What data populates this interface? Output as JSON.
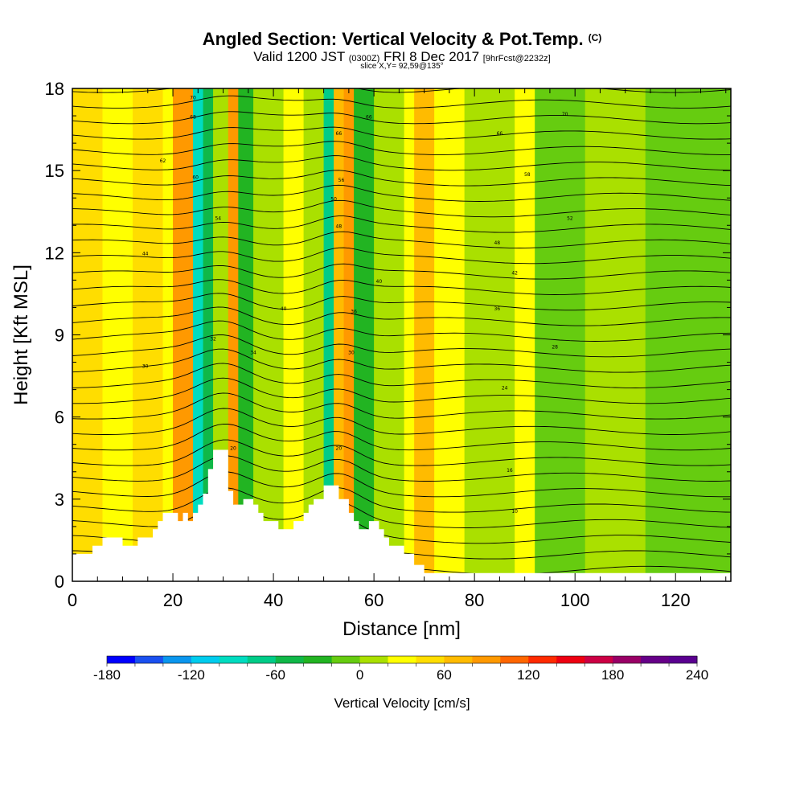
{
  "header": {
    "title": "Angled Section: Vertical Velocity & Pot.Temp.",
    "title_suffix": "(C)",
    "line2_a": "Valid 1200 JST",
    "line2_b": "(0300Z)",
    "line2_c": "FRI 8 Dec 2017",
    "line2_d": "[9hrFcst@2232z]",
    "line3": "slice X,Y= 92,59@135°"
  },
  "chart_data": {
    "type": "heatmap",
    "title": "Angled Section: Vertical Velocity & Pot.Temp. (C)",
    "xlabel": "Distance [nm]",
    "ylabel": "Height [Kft MSL]",
    "xlim": [
      0,
      131
    ],
    "ylim": [
      0,
      18
    ],
    "x_ticks": [
      0,
      20,
      40,
      60,
      80,
      100,
      120
    ],
    "y_ticks": [
      0,
      3,
      6,
      9,
      12,
      15,
      18
    ],
    "colorbar": {
      "title": "Vertical Velocity [cm/s]",
      "min": -180,
      "max": 240,
      "step": 20,
      "tick_labels": [
        -180,
        -120,
        -60,
        0,
        60,
        120,
        180,
        240
      ],
      "colors": [
        "#0000ff",
        "#1a50f0",
        "#0a96ee",
        "#00ccee",
        "#00dcc0",
        "#00cc88",
        "#10b848",
        "#22b422",
        "#66cc10",
        "#aae000",
        "#ffff00",
        "#ffdd00",
        "#ffbb00",
        "#ff9900",
        "#ff6600",
        "#ff2a00",
        "#ee0011",
        "#cc0044",
        "#990066",
        "#660088",
        "#5a0090"
      ]
    },
    "vertical_velocity_bands": [
      {
        "x": 0,
        "w": 6,
        "v": 40
      },
      {
        "x": 6,
        "w": 6,
        "v": 20
      },
      {
        "x": 12,
        "w": 6,
        "v": 40
      },
      {
        "x": 18,
        "w": 2,
        "v": 20
      },
      {
        "x": 20,
        "w": 4,
        "v": 90
      },
      {
        "x": 24,
        "w": 2,
        "v": -100
      },
      {
        "x": 26,
        "w": 2,
        "v": -60
      },
      {
        "x": 28,
        "w": 3,
        "v": 10
      },
      {
        "x": 31,
        "w": 2,
        "v": 80
      },
      {
        "x": 33,
        "w": 3,
        "v": -40
      },
      {
        "x": 36,
        "w": 6,
        "v": 0
      },
      {
        "x": 42,
        "w": 4,
        "v": 20
      },
      {
        "x": 46,
        "w": 4,
        "v": 0
      },
      {
        "x": 50,
        "w": 2,
        "v": -70
      },
      {
        "x": 52,
        "w": 2,
        "v": 60
      },
      {
        "x": 54,
        "w": 2,
        "v": 90
      },
      {
        "x": 56,
        "w": 4,
        "v": -40
      },
      {
        "x": 60,
        "w": 6,
        "v": 0
      },
      {
        "x": 66,
        "w": 2,
        "v": 20
      },
      {
        "x": 68,
        "w": 4,
        "v": 70
      },
      {
        "x": 72,
        "w": 6,
        "v": 20
      },
      {
        "x": 78,
        "w": 10,
        "v": 0
      },
      {
        "x": 88,
        "w": 4,
        "v": 30
      },
      {
        "x": 92,
        "w": 10,
        "v": -10
      },
      {
        "x": 102,
        "w": 12,
        "v": 0
      },
      {
        "x": 114,
        "w": 17,
        "v": -10
      }
    ],
    "terrain": [
      [
        0,
        1.0
      ],
      [
        4,
        1.0
      ],
      [
        4,
        1.3
      ],
      [
        6,
        1.3
      ],
      [
        6,
        1.6
      ],
      [
        10,
        1.6
      ],
      [
        10,
        1.3
      ],
      [
        13,
        1.3
      ],
      [
        13,
        1.6
      ],
      [
        16,
        1.6
      ],
      [
        16,
        1.9
      ],
      [
        17,
        1.9
      ],
      [
        17,
        2.2
      ],
      [
        18,
        2.2
      ],
      [
        18,
        2.5
      ],
      [
        21,
        2.5
      ],
      [
        21,
        2.2
      ],
      [
        22,
        2.2
      ],
      [
        22,
        2.5
      ],
      [
        23,
        2.5
      ],
      [
        23,
        2.2
      ],
      [
        24,
        2.2
      ],
      [
        24,
        2.5
      ],
      [
        25,
        2.5
      ],
      [
        25,
        2.8
      ],
      [
        26,
        2.8
      ],
      [
        26,
        3.2
      ],
      [
        27,
        3.2
      ],
      [
        27,
        4.1
      ],
      [
        28,
        4.1
      ],
      [
        28,
        4.8
      ],
      [
        31,
        4.8
      ],
      [
        31,
        3.3
      ],
      [
        32,
        3.3
      ],
      [
        32,
        2.8
      ],
      [
        34,
        2.8
      ],
      [
        34,
        3.0
      ],
      [
        36,
        3.0
      ],
      [
        36,
        2.8
      ],
      [
        37,
        2.8
      ],
      [
        37,
        2.5
      ],
      [
        38,
        2.5
      ],
      [
        38,
        2.2
      ],
      [
        41,
        2.2
      ],
      [
        41,
        1.9
      ],
      [
        44,
        1.9
      ],
      [
        44,
        2.2
      ],
      [
        46,
        2.2
      ],
      [
        46,
        2.5
      ],
      [
        47,
        2.5
      ],
      [
        47,
        2.8
      ],
      [
        48,
        2.8
      ],
      [
        48,
        3.0
      ],
      [
        50,
        3.0
      ],
      [
        50,
        3.5
      ],
      [
        53,
        3.5
      ],
      [
        53,
        3.0
      ],
      [
        55,
        3.0
      ],
      [
        55,
        2.5
      ],
      [
        56,
        2.5
      ],
      [
        56,
        2.2
      ],
      [
        57,
        2.2
      ],
      [
        57,
        1.9
      ],
      [
        59,
        1.9
      ],
      [
        59,
        2.2
      ],
      [
        61,
        2.2
      ],
      [
        61,
        1.9
      ],
      [
        62,
        1.9
      ],
      [
        62,
        1.6
      ],
      [
        63,
        1.6
      ],
      [
        63,
        1.3
      ],
      [
        66,
        1.3
      ],
      [
        66,
        1.0
      ],
      [
        68,
        1.0
      ],
      [
        68,
        0.6
      ],
      [
        70,
        0.6
      ],
      [
        70,
        0.3
      ],
      [
        131,
        0.3
      ],
      [
        131,
        0
      ]
    ],
    "pot_temp_contours": [
      10,
      12,
      14,
      16,
      18,
      20,
      22,
      24,
      26,
      28,
      30,
      32,
      34,
      36,
      38,
      40,
      42,
      44,
      46,
      48,
      50,
      52,
      54,
      56,
      58,
      60,
      62,
      64,
      66,
      68,
      70,
      72
    ],
    "pot_temp_labels": [
      {
        "x": 24,
        "y": 17.6,
        "t": "70"
      },
      {
        "x": 24,
        "y": 16.9,
        "t": "68"
      },
      {
        "x": 18,
        "y": 15.3,
        "t": "62"
      },
      {
        "x": 24.5,
        "y": 14.7,
        "t": "60"
      },
      {
        "x": 29,
        "y": 13.2,
        "t": "54"
      },
      {
        "x": 14.5,
        "y": 11.9,
        "t": "44"
      },
      {
        "x": 14.5,
        "y": 7.8,
        "t": "30"
      },
      {
        "x": 28,
        "y": 8.8,
        "t": "32"
      },
      {
        "x": 36,
        "y": 8.3,
        "t": "34"
      },
      {
        "x": 42,
        "y": 9.9,
        "t": "40"
      },
      {
        "x": 32,
        "y": 4.8,
        "t": "20"
      },
      {
        "x": 53,
        "y": 16.3,
        "t": "66"
      },
      {
        "x": 59,
        "y": 16.9,
        "t": "66"
      },
      {
        "x": 53.5,
        "y": 14.6,
        "t": "56"
      },
      {
        "x": 52,
        "y": 13.9,
        "t": "50"
      },
      {
        "x": 53,
        "y": 12.9,
        "t": "48"
      },
      {
        "x": 61,
        "y": 10.9,
        "t": "40"
      },
      {
        "x": 56,
        "y": 9.8,
        "t": "36"
      },
      {
        "x": 55.5,
        "y": 8.3,
        "t": "30"
      },
      {
        "x": 53,
        "y": 4.8,
        "t": "20"
      },
      {
        "x": 98,
        "y": 17.0,
        "t": "70"
      },
      {
        "x": 85,
        "y": 16.3,
        "t": "66"
      },
      {
        "x": 90.5,
        "y": 14.8,
        "t": "58"
      },
      {
        "x": 99,
        "y": 13.2,
        "t": "52"
      },
      {
        "x": 84.5,
        "y": 12.3,
        "t": "48"
      },
      {
        "x": 88,
        "y": 11.2,
        "t": "42"
      },
      {
        "x": 84.5,
        "y": 9.9,
        "t": "36"
      },
      {
        "x": 96,
        "y": 8.5,
        "t": "28"
      },
      {
        "x": 86,
        "y": 7.0,
        "t": "24"
      },
      {
        "x": 87,
        "y": 4.0,
        "t": "16"
      },
      {
        "x": 88,
        "y": 2.5,
        "t": "10"
      }
    ]
  }
}
